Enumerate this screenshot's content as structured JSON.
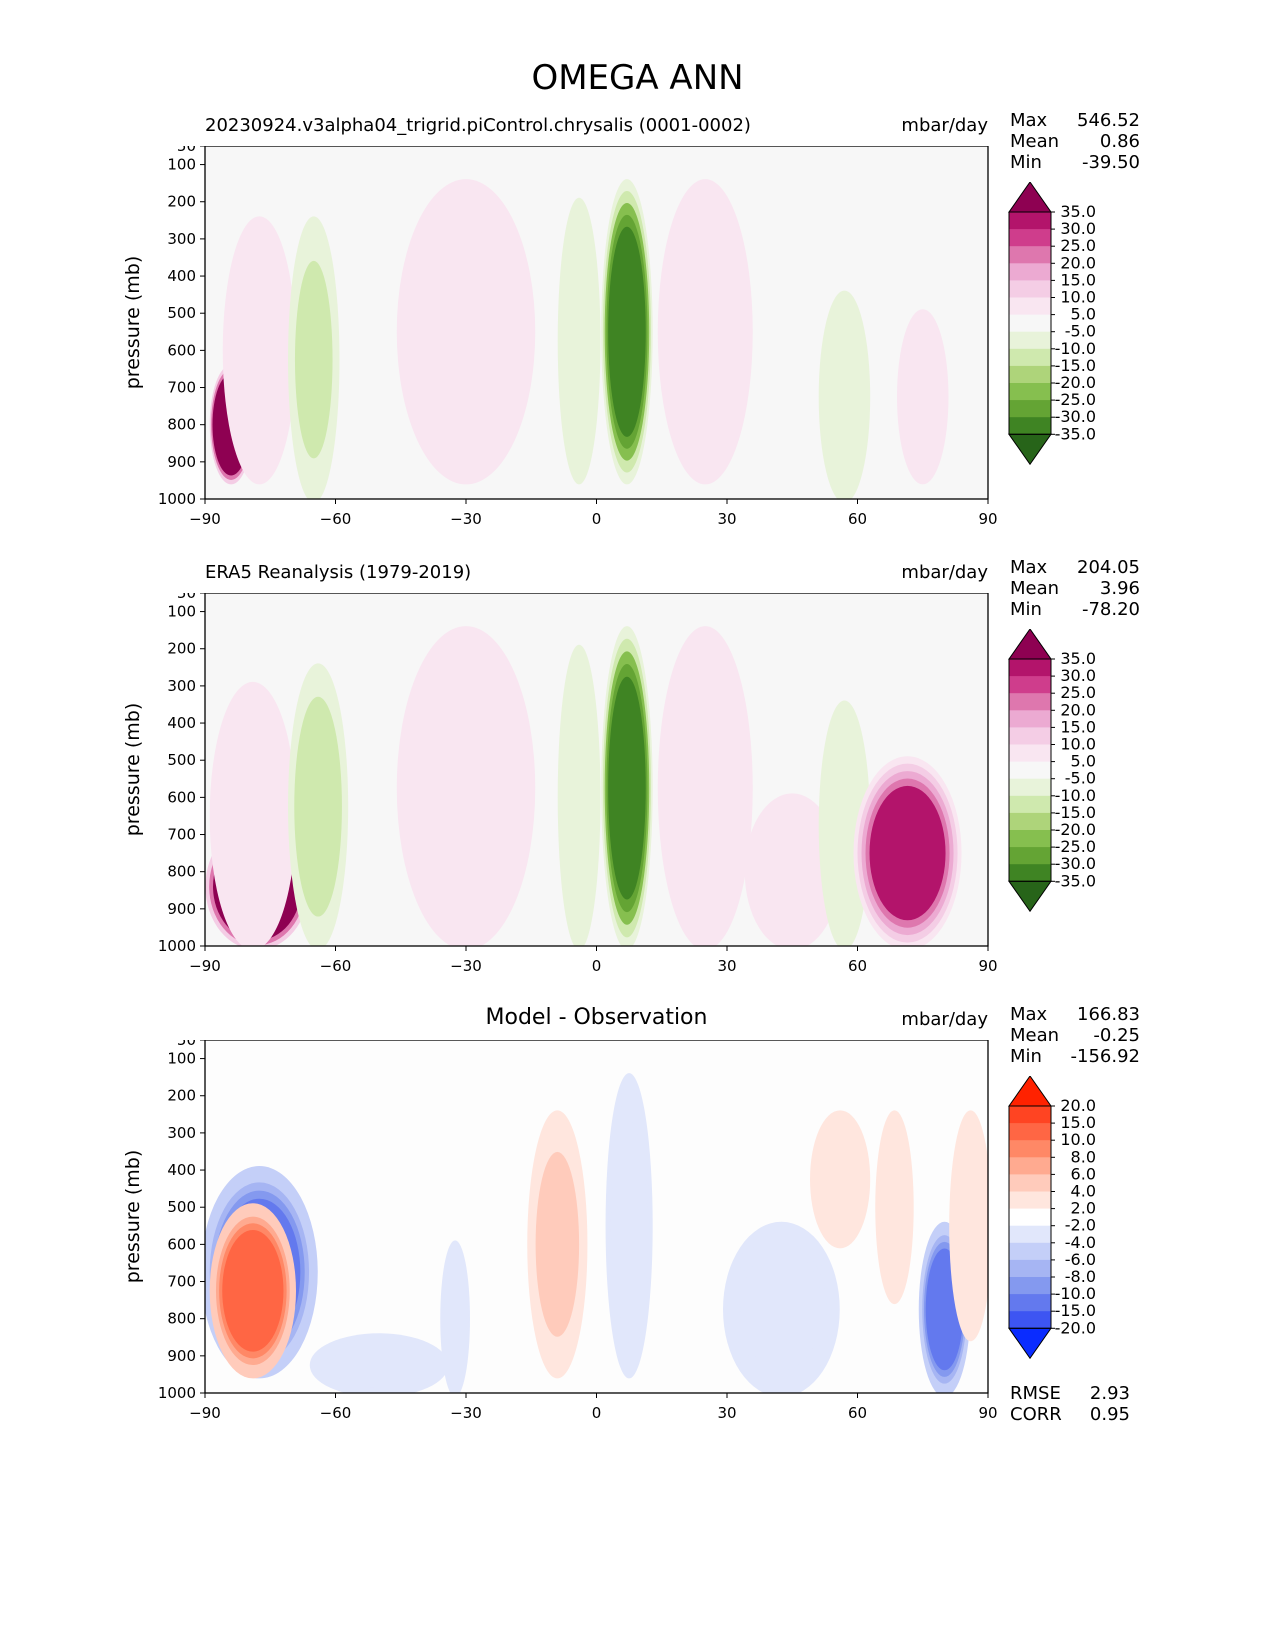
{
  "suptitle": "OMEGA ANN",
  "panels": [
    {
      "title": "20230924.v3alpha04_trigrid.piControl.chrysalis (0001-0002)",
      "title_centered": false,
      "units": "mbar/day",
      "stats": [
        {
          "label": "Max",
          "value": "546.52"
        },
        {
          "label": "Mean",
          "value": "0.86"
        },
        {
          "label": "Min",
          "value": "-39.50"
        }
      ],
      "colorbar": "model"
    },
    {
      "title": "ERA5 Reanalysis (1979-2019)",
      "title_centered": false,
      "units": "mbar/day",
      "stats": [
        {
          "label": "Max",
          "value": "204.05"
        },
        {
          "label": "Mean",
          "value": "3.96"
        },
        {
          "label": "Min",
          "value": "-78.20"
        }
      ],
      "colorbar": "model"
    },
    {
      "title": "Model - Observation",
      "title_centered": true,
      "units": "mbar/day",
      "stats": [
        {
          "label": "Max",
          "value": "166.83"
        },
        {
          "label": "Mean",
          "value": "-0.25"
        },
        {
          "label": "Min",
          "value": "-156.92"
        }
      ],
      "colorbar": "diff",
      "extra_stats": [
        {
          "label": "RMSE",
          "value": "2.93"
        },
        {
          "label": "CORR",
          "value": "0.95"
        }
      ]
    }
  ],
  "axes": {
    "ylabel": "pressure (mb)",
    "x_ticks": [
      "−90",
      "−60",
      "−30",
      "0",
      "30",
      "60",
      "90"
    ],
    "y_ticks": [
      "50",
      "100",
      "200",
      "300",
      "400",
      "500",
      "600",
      "700",
      "800",
      "900",
      "1000"
    ]
  },
  "colorbars": {
    "model": {
      "labels": [
        "35.0",
        "30.0",
        "25.0",
        "20.0",
        "15.0",
        "10.0",
        "5.0",
        "-5.0",
        "-10.0",
        "-15.0",
        "-20.0",
        "-25.0",
        "-30.0",
        "-35.0"
      ],
      "colors": [
        "#8e0152",
        "#b3146b",
        "#cf3d8c",
        "#de77ae",
        "#ecaad2",
        "#f4cde5",
        "#f9e6f1",
        "#f7f7f7",
        "#e8f3da",
        "#cfe9ae",
        "#aed47a",
        "#86bf4f",
        "#64a434",
        "#3f8423",
        "#276419"
      ]
    },
    "diff": {
      "labels": [
        "20.0",
        "15.0",
        "10.0",
        "8.0",
        "6.0",
        "4.0",
        "2.0",
        "-2.0",
        "-4.0",
        "-6.0",
        "-8.0",
        "-10.0",
        "-15.0",
        "-20.0"
      ],
      "colors": [
        "#ff2200",
        "#ff4422",
        "#ff6644",
        "#ff8866",
        "#ffaa90",
        "#ffcbbb",
        "#ffe6de",
        "#ffffff",
        "#e1e7fb",
        "#c4cff8",
        "#a6b5f3",
        "#8499ef",
        "#6379ee",
        "#3d55f2",
        "#0a2cff"
      ]
    }
  },
  "chart_data": [
    {
      "type": "heatmap",
      "title": "20230924.v3alpha04_trigrid.piControl.chrysalis (0001-0002)",
      "xlabel": "",
      "ylabel": "pressure (mb)",
      "units": "mbar/day",
      "xlim": [
        -90,
        90
      ],
      "ylim": [
        1000,
        50
      ],
      "levels": [
        -35,
        -30,
        -25,
        -20,
        -15,
        -10,
        -5,
        5,
        10,
        15,
        20,
        25,
        30,
        35
      ],
      "features": [
        {
          "lat": [
            -88,
            -80
          ],
          "p": [
            650,
            950
          ],
          "value": 60
        },
        {
          "lat": [
            -85,
            -70
          ],
          "p": [
            250,
            950
          ],
          "value": 8
        },
        {
          "lat": [
            -70,
            -60
          ],
          "p": [
            250,
            1000
          ],
          "value": -12
        },
        {
          "lat": [
            -45,
            -15
          ],
          "p": [
            150,
            950
          ],
          "value": 9
        },
        {
          "lat": [
            -8,
            0
          ],
          "p": [
            200,
            950
          ],
          "value": -8
        },
        {
          "lat": [
            2,
            12
          ],
          "p": [
            150,
            950
          ],
          "value": -35
        },
        {
          "lat": [
            15,
            35
          ],
          "p": [
            150,
            950
          ],
          "value": 9
        },
        {
          "lat": [
            52,
            62
          ],
          "p": [
            450,
            1000
          ],
          "value": -6
        },
        {
          "lat": [
            70,
            80
          ],
          "p": [
            500,
            950
          ],
          "value": 6
        }
      ]
    },
    {
      "type": "heatmap",
      "title": "ERA5 Reanalysis (1979-2019)",
      "xlabel": "",
      "ylabel": "pressure (mb)",
      "units": "mbar/day",
      "xlim": [
        -90,
        90
      ],
      "ylim": [
        1000,
        50
      ],
      "levels": [
        -35,
        -30,
        -25,
        -20,
        -15,
        -10,
        -5,
        5,
        10,
        15,
        20,
        25,
        30,
        35
      ],
      "features": [
        {
          "lat": [
            -89,
            -67
          ],
          "p": [
            680,
            1000
          ],
          "value": 60
        },
        {
          "lat": [
            -88,
            -70
          ],
          "p": [
            300,
            1000
          ],
          "value": 8
        },
        {
          "lat": [
            -70,
            -58
          ],
          "p": [
            250,
            1000
          ],
          "value": -14
        },
        {
          "lat": [
            -45,
            -15
          ],
          "p": [
            150,
            1000
          ],
          "value": 9
        },
        {
          "lat": [
            -8,
            0
          ],
          "p": [
            200,
            1000
          ],
          "value": -10
        },
        {
          "lat": [
            2,
            12
          ],
          "p": [
            150,
            1000
          ],
          "value": -35
        },
        {
          "lat": [
            15,
            35
          ],
          "p": [
            150,
            1000
          ],
          "value": 9
        },
        {
          "lat": [
            35,
            55
          ],
          "p": [
            600,
            1000
          ],
          "value": 8
        },
        {
          "lat": [
            52,
            62
          ],
          "p": [
            350,
            1000
          ],
          "value": -10
        },
        {
          "lat": [
            60,
            83
          ],
          "p": [
            500,
            1000
          ],
          "value": 30
        }
      ]
    },
    {
      "type": "heatmap",
      "title": "Model - Observation",
      "xlabel": "",
      "ylabel": "pressure (mb)",
      "units": "mbar/day",
      "xlim": [
        -90,
        90
      ],
      "ylim": [
        1000,
        50
      ],
      "levels": [
        -20,
        -15,
        -10,
        -8,
        -6,
        -4,
        -2,
        2,
        4,
        6,
        8,
        10,
        15,
        20
      ],
      "rmse": 2.93,
      "corr": 0.95,
      "features": [
        {
          "lat": [
            -90,
            -65
          ],
          "p": [
            400,
            950
          ],
          "value": -12
        },
        {
          "lat": [
            -88,
            -70
          ],
          "p": [
            500,
            950
          ],
          "value": 12
        },
        {
          "lat": [
            -65,
            -35
          ],
          "p": [
            850,
            1000
          ],
          "value": -3
        },
        {
          "lat": [
            -35,
            -30
          ],
          "p": [
            600,
            1000
          ],
          "value": -3
        },
        {
          "lat": [
            -15,
            -3
          ],
          "p": [
            250,
            950
          ],
          "value": 4
        },
        {
          "lat": [
            3,
            12
          ],
          "p": [
            150,
            950
          ],
          "value": -4
        },
        {
          "lat": [
            30,
            55
          ],
          "p": [
            550,
            1000
          ],
          "value": -4
        },
        {
          "lat": [
            50,
            62
          ],
          "p": [
            250,
            600
          ],
          "value": 3
        },
        {
          "lat": [
            65,
            72
          ],
          "p": [
            250,
            750
          ],
          "value": 3
        },
        {
          "lat": [
            75,
            85
          ],
          "p": [
            550,
            1000
          ],
          "value": -12
        },
        {
          "lat": [
            82,
            90
          ],
          "p": [
            250,
            850
          ],
          "value": 3
        }
      ]
    }
  ]
}
